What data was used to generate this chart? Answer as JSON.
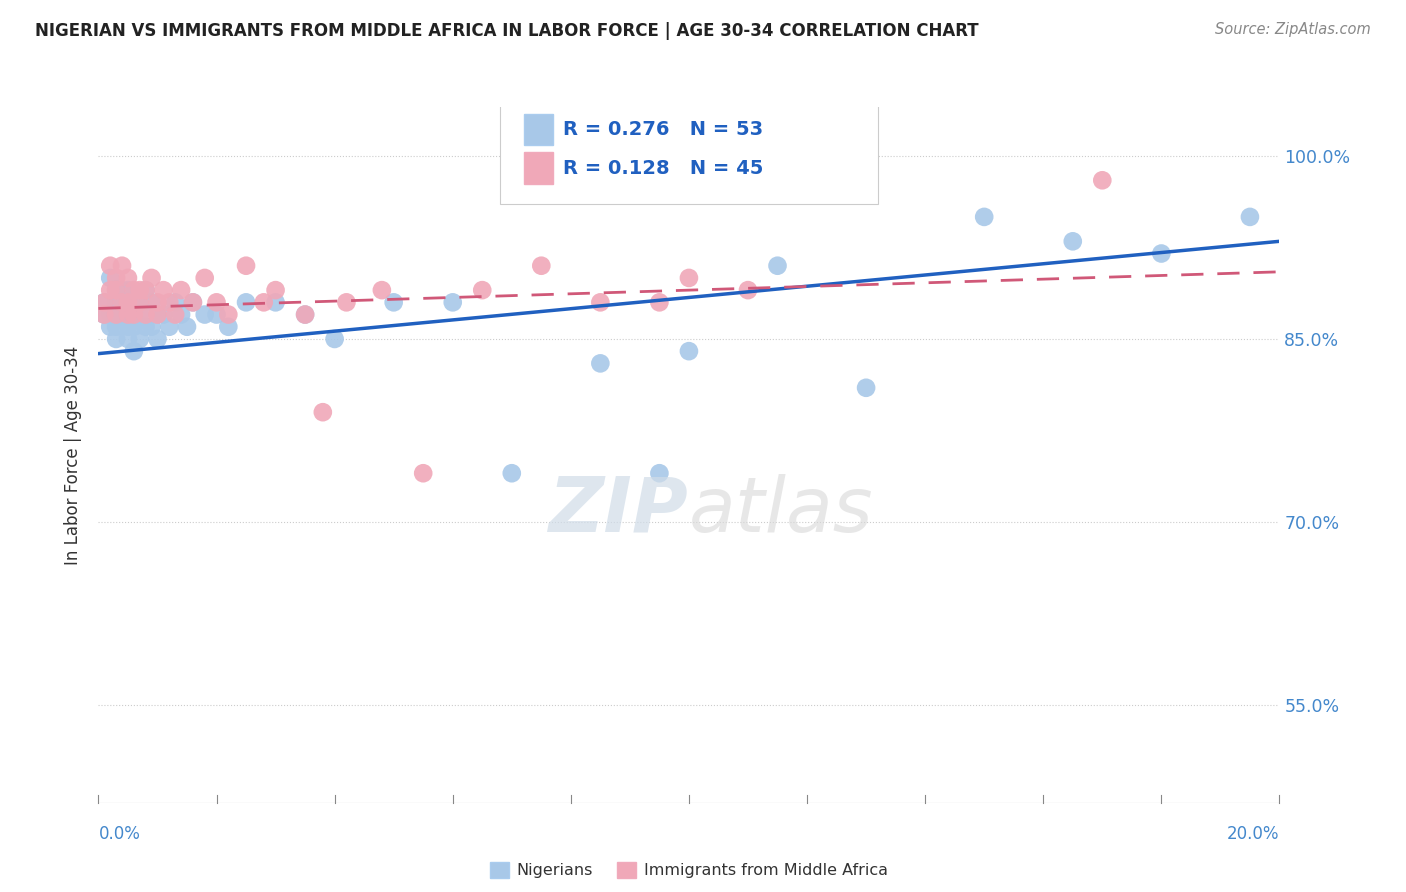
{
  "title": "NIGERIAN VS IMMIGRANTS FROM MIDDLE AFRICA IN LABOR FORCE | AGE 30-34 CORRELATION CHART",
  "source": "Source: ZipAtlas.com",
  "ylabel": "In Labor Force | Age 30-34",
  "xmin": 0.0,
  "xmax": 0.2,
  "ymin": 0.47,
  "ymax": 1.04,
  "yticks": [
    0.55,
    0.7,
    0.85,
    1.0
  ],
  "ytick_labels": [
    "55.0%",
    "70.0%",
    "85.0%",
    "100.0%"
  ],
  "r_nigerian": 0.276,
  "n_nigerian": 53,
  "r_immigrants": 0.128,
  "n_immigrants": 45,
  "color_nigerian": "#a8c8e8",
  "color_immigrants": "#f0a8b8",
  "color_line_nigerian": "#2060c0",
  "color_line_immigrants": "#d05878",
  "legend_label_nigerian": "Nigerians",
  "legend_label_immigrants": "Immigrants from Middle Africa",
  "watermark_zip": "ZIP",
  "watermark_atlas": "atlas",
  "nigerian_x": [
    0.001,
    0.001,
    0.002,
    0.002,
    0.002,
    0.003,
    0.003,
    0.003,
    0.003,
    0.004,
    0.004,
    0.004,
    0.005,
    0.005,
    0.005,
    0.005,
    0.006,
    0.006,
    0.006,
    0.007,
    0.007,
    0.007,
    0.008,
    0.008,
    0.009,
    0.009,
    0.01,
    0.01,
    0.011,
    0.012,
    0.013,
    0.014,
    0.015,
    0.016,
    0.018,
    0.02,
    0.022,
    0.025,
    0.03,
    0.035,
    0.04,
    0.05,
    0.06,
    0.07,
    0.085,
    0.095,
    0.1,
    0.115,
    0.13,
    0.15,
    0.165,
    0.18,
    0.195
  ],
  "nigerian_y": [
    0.88,
    0.87,
    0.9,
    0.87,
    0.86,
    0.89,
    0.88,
    0.86,
    0.85,
    0.89,
    0.88,
    0.87,
    0.89,
    0.87,
    0.86,
    0.85,
    0.88,
    0.86,
    0.84,
    0.88,
    0.87,
    0.85,
    0.89,
    0.86,
    0.88,
    0.86,
    0.87,
    0.85,
    0.87,
    0.86,
    0.88,
    0.87,
    0.86,
    0.88,
    0.87,
    0.87,
    0.86,
    0.88,
    0.88,
    0.87,
    0.85,
    0.88,
    0.88,
    0.74,
    0.83,
    0.74,
    0.84,
    0.91,
    0.81,
    0.95,
    0.93,
    0.92,
    0.95
  ],
  "immigrant_x": [
    0.001,
    0.001,
    0.002,
    0.002,
    0.003,
    0.003,
    0.003,
    0.004,
    0.004,
    0.005,
    0.005,
    0.005,
    0.006,
    0.006,
    0.007,
    0.007,
    0.008,
    0.008,
    0.009,
    0.01,
    0.01,
    0.011,
    0.012,
    0.013,
    0.014,
    0.016,
    0.018,
    0.02,
    0.022,
    0.025,
    0.028,
    0.03,
    0.035,
    0.038,
    0.042,
    0.048,
    0.055,
    0.065,
    0.075,
    0.085,
    0.095,
    0.1,
    0.11,
    0.13,
    0.17
  ],
  "immigrant_y": [
    0.88,
    0.87,
    0.91,
    0.89,
    0.9,
    0.89,
    0.87,
    0.91,
    0.88,
    0.9,
    0.88,
    0.87,
    0.89,
    0.87,
    0.89,
    0.88,
    0.89,
    0.87,
    0.9,
    0.88,
    0.87,
    0.89,
    0.88,
    0.87,
    0.89,
    0.88,
    0.9,
    0.88,
    0.87,
    0.91,
    0.88,
    0.89,
    0.87,
    0.79,
    0.88,
    0.89,
    0.74,
    0.89,
    0.91,
    0.88,
    0.88,
    0.9,
    0.89,
    0.98,
    0.98
  ],
  "trendline_nig_y0": 0.838,
  "trendline_nig_y1": 0.93,
  "trendline_imm_y0": 0.875,
  "trendline_imm_y1": 0.905
}
